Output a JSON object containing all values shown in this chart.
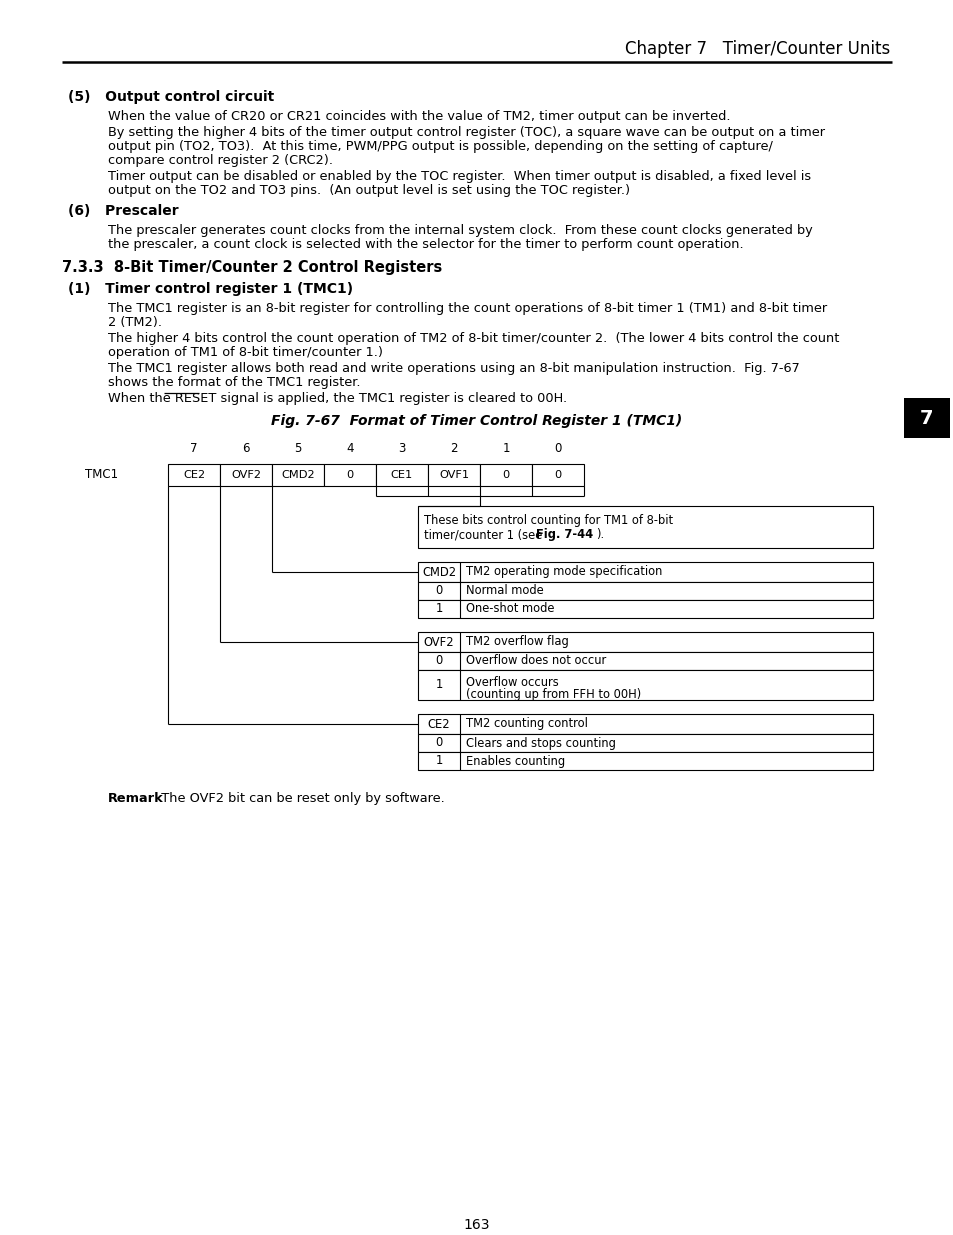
{
  "page_title": "Chapter 7   Timer/Counter Units",
  "page_number": "163",
  "section_5_heading": "(5)   Output control circuit",
  "section_5_para1": "When the value of CR20 or CR21 coincides with the value of TM2, timer output can be inverted.",
  "section_5_para2a": "By setting the higher 4 bits of the timer output control register (TOC), a square wave can be output on a timer",
  "section_5_para2b": "output pin (TO2, TO3).  At this time, PWM/PPG output is possible, depending on the setting of capture/",
  "section_5_para2c": "compare control register 2 (CRC2).",
  "section_5_para3a": "Timer output can be disabled or enabled by the TOC register.  When timer output is disabled, a fixed level is",
  "section_5_para3b": "output on the TO2 and TO3 pins.  (An output level is set using the TOC register.)",
  "section_6_heading": "(6)   Prescaler",
  "section_6_para1a": "The prescaler generates count clocks from the internal system clock.  From these count clocks generated by",
  "section_6_para1b": "the prescaler, a count clock is selected with the selector for the timer to perform count operation.",
  "section_733_heading": "7.3.3  8-Bit Timer/Counter 2 Control Registers",
  "section_1_heading": "(1)   Timer control register 1 (TMC1)",
  "section_1_para1a": "The TMC1 register is an 8-bit register for controlling the count operations of 8-bit timer 1 (TM1) and 8-bit timer",
  "section_1_para1b": "2 (TM2).",
  "section_1_para2a": "The higher 4 bits control the count operation of TM2 of 8-bit timer/counter 2.  (The lower 4 bits control the count",
  "section_1_para2b": "operation of TM1 of 8-bit timer/counter 1.)",
  "section_1_para3a": "The TMC1 register allows both read and write operations using an 8-bit manipulation instruction.  Fig. 7-67",
  "section_1_para3b": "shows the format of the TMC1 register.",
  "section_1_para4": "When the RESET signal is applied, the TMC1 register is cleared to 00H.",
  "fig_title": "Fig. 7-67  Format of Timer Control Register 1 (TMC1)",
  "register_bits": [
    "CE2",
    "OVF2",
    "CMD2",
    "0",
    "CE1",
    "OVF1",
    "0",
    "0"
  ],
  "bit_numbers": [
    "7",
    "6",
    "5",
    "4",
    "3",
    "2",
    "1",
    "0"
  ],
  "register_label": "TMC1",
  "tab1_text1": "These bits control counting for TM1 of 8-bit",
  "tab1_text2a": "timer/counter 1 (see ",
  "tab1_text2b": "Fig. 7-44",
  "tab1_text2c": ").",
  "tab2_header": [
    "CMD2",
    "TM2 operating mode specification"
  ],
  "tab2_rows": [
    [
      "0",
      "Normal mode"
    ],
    [
      "1",
      "One-shot mode"
    ]
  ],
  "tab3_header": [
    "OVF2",
    "TM2 overflow flag"
  ],
  "tab3_rows": [
    [
      "0",
      "Overflow does not occur"
    ],
    [
      "1",
      "Overflow occurs\n(counting up from FFH to 00H)"
    ]
  ],
  "tab4_header": [
    "CE2",
    "TM2 counting control"
  ],
  "tab4_rows": [
    [
      "0",
      "Clears and stops counting"
    ],
    [
      "1",
      "Enables counting"
    ]
  ],
  "remark_bold": "Remark",
  "remark_rest": "  The OVF2 bit can be reset only by software.",
  "sidebar_num": "7",
  "bg_color": "#ffffff"
}
